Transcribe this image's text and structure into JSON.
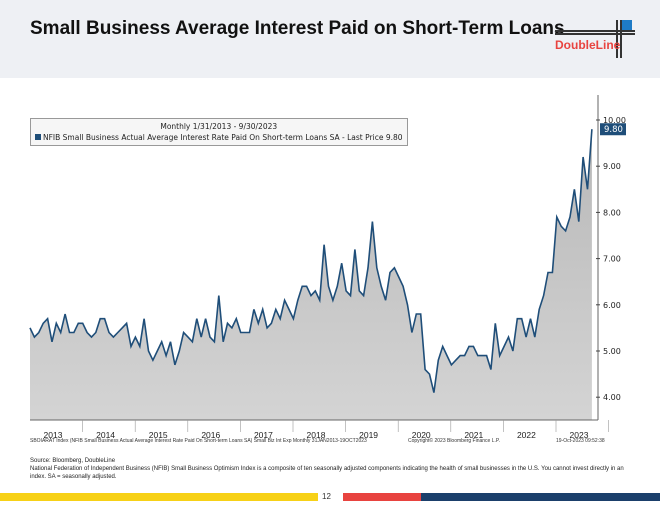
{
  "header": {
    "title": "Small Business Average Interest Paid on Short-Term Loans",
    "logo": "DoubleLine"
  },
  "chart_data": {
    "type": "area",
    "title": "Monthly 1/31/2013 - 9/30/2023",
    "legend": "NFIB Small Business Actual Average Interest Rate Paid On Short-term Loans SA - Last Price 9.80",
    "last_value_label": "9.80",
    "x_start": "2013-01",
    "x_end": "2023-09",
    "x_tick_labels": [
      "2013",
      "2014",
      "2015",
      "2016",
      "2017",
      "2018",
      "2019",
      "2020",
      "2021",
      "2022",
      "2023"
    ],
    "y_tick_labels": [
      "4.00",
      "5.00",
      "6.00",
      "7.00",
      "8.00",
      "9.00",
      "10.00"
    ],
    "ylim": [
      3.5,
      10.2
    ],
    "line_color": "#1f4e79",
    "values": [
      5.5,
      5.3,
      5.4,
      5.6,
      5.7,
      5.2,
      5.6,
      5.4,
      5.8,
      5.4,
      5.4,
      5.6,
      5.6,
      5.4,
      5.3,
      5.4,
      5.7,
      5.7,
      5.4,
      5.3,
      5.4,
      5.5,
      5.6,
      5.1,
      5.3,
      5.1,
      5.7,
      5.0,
      4.8,
      5.0,
      5.2,
      4.9,
      5.2,
      4.7,
      5.0,
      5.4,
      5.3,
      5.2,
      5.7,
      5.3,
      5.7,
      5.3,
      5.2,
      6.2,
      5.2,
      5.6,
      5.5,
      5.7,
      5.4,
      5.4,
      5.4,
      5.9,
      5.6,
      5.9,
      5.5,
      5.6,
      5.9,
      5.7,
      6.1,
      5.9,
      5.7,
      6.1,
      6.4,
      6.4,
      6.2,
      6.3,
      6.1,
      7.3,
      6.4,
      6.1,
      6.4,
      6.9,
      6.3,
      6.2,
      7.2,
      6.3,
      6.2,
      6.8,
      7.8,
      6.8,
      6.4,
      6.1,
      6.7,
      6.8,
      6.6,
      6.4,
      6.0,
      5.4,
      5.8,
      5.8,
      4.6,
      4.5,
      4.1,
      4.8,
      5.1,
      4.9,
      4.7,
      4.8,
      4.9,
      4.9,
      5.1,
      5.1,
      4.9,
      4.9,
      4.9,
      4.6,
      5.6,
      4.9,
      5.1,
      5.3,
      5.0,
      5.7,
      5.7,
      5.3,
      5.7,
      5.3,
      5.9,
      6.2,
      6.7,
      6.7,
      7.9,
      7.7,
      7.6,
      7.9,
      8.5,
      7.8,
      9.2,
      8.5,
      9.8
    ]
  },
  "footer": {
    "ticker": "SBOIARAT Index (NFIB Small Business Actual Average Interest Rate Paid On Short-term Loans SA) Small Biz Int Exp  Monthly 31JAN2013-19OCT2023",
    "copyright": "Copyright© 2023 Bloomberg Finance L.P.",
    "timestamp": "19-Oct-2023 09:52:38",
    "source": "Source: Bloomberg, DoubleLine",
    "note": "National Federation of Independent Business (NFIB) Small Business Optimism Index is a composite of ten seasonally adjusted components indicating the health of small businesses in the U.S. You cannot invest directly in an index. SA = seasonally adjusted.",
    "page": "12"
  }
}
